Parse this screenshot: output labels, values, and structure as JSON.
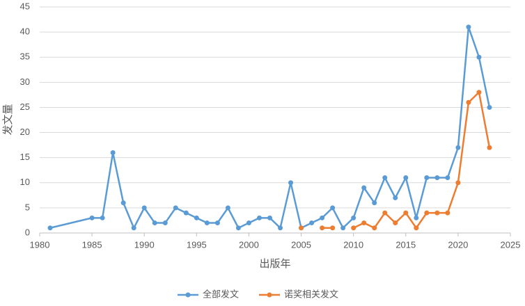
{
  "chart_data": {
    "type": "line",
    "x_label": "出版年",
    "y_label": "发文量",
    "x": [
      1981,
      1985,
      1986,
      1987,
      1988,
      1989,
      1990,
      1991,
      1992,
      1993,
      1994,
      1995,
      1996,
      1997,
      1998,
      1999,
      2000,
      2001,
      2002,
      2003,
      2004,
      2005,
      2006,
      2007,
      2008,
      2009,
      2010,
      2011,
      2012,
      2013,
      2014,
      2015,
      2016,
      2017,
      2018,
      2019,
      2020,
      2021,
      2022,
      2023
    ],
    "series": [
      {
        "name": "全部发文",
        "color": "#5b9bd5",
        "values": [
          1,
          3,
          3,
          16,
          6,
          1,
          5,
          2,
          2,
          5,
          4,
          3,
          2,
          2,
          5,
          1,
          2,
          3,
          3,
          1,
          10,
          1,
          2,
          3,
          5,
          1,
          3,
          9,
          6,
          11,
          7,
          11,
          3,
          11,
          11,
          11,
          17,
          41,
          35,
          25
        ]
      },
      {
        "name": "诺奖相关发文",
        "color": "#ed7d31",
        "values": [
          null,
          null,
          null,
          null,
          null,
          null,
          null,
          null,
          null,
          null,
          null,
          null,
          null,
          null,
          null,
          null,
          null,
          null,
          null,
          null,
          null,
          1,
          null,
          1,
          1,
          null,
          1,
          2,
          1,
          4,
          2,
          4,
          1,
          4,
          4,
          4,
          10,
          26,
          28,
          17
        ]
      }
    ],
    "xlim": [
      1980,
      2025
    ],
    "xticks": [
      1980,
      1985,
      1990,
      1995,
      2000,
      2005,
      2010,
      2015,
      2020,
      2025
    ],
    "ylim": [
      0,
      45
    ],
    "yticks": [
      0,
      5,
      10,
      15,
      20,
      25,
      30,
      35,
      40,
      45
    ],
    "grid": true,
    "legend": "bottom"
  }
}
